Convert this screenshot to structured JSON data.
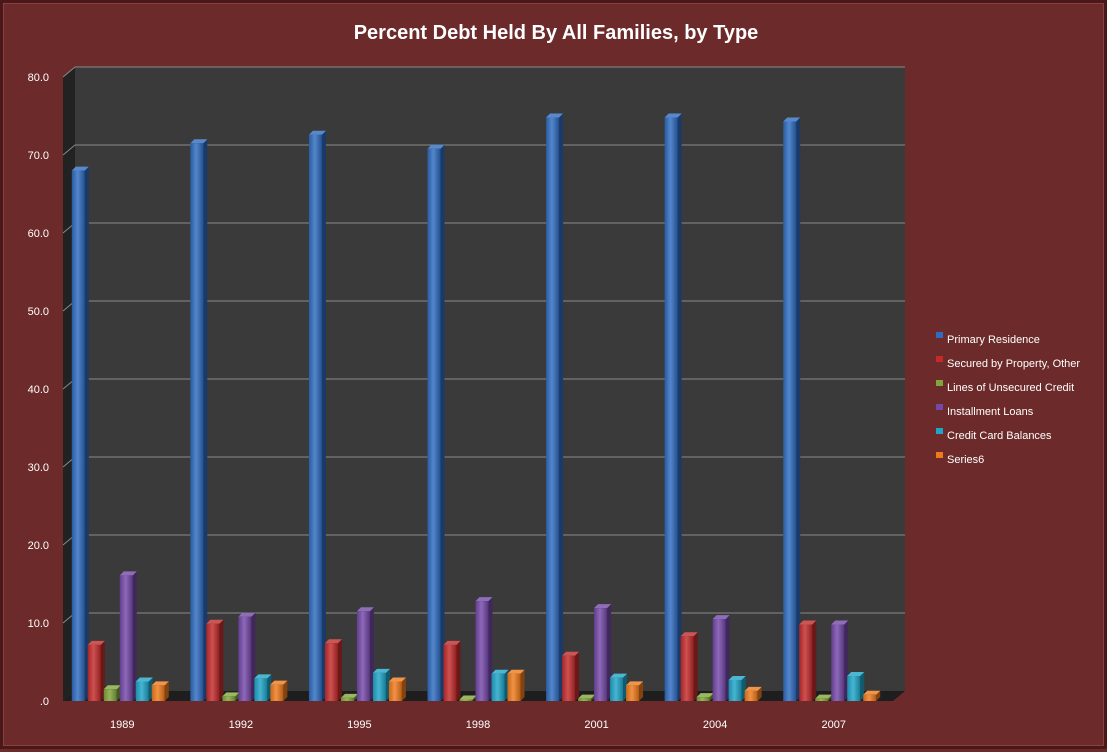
{
  "chart_data": {
    "type": "bar",
    "title": "Percent Debt Held By All Families, by Type",
    "xlabel": "",
    "ylabel": "",
    "categories": [
      "1989",
      "1992",
      "1995",
      "1998",
      "2001",
      "2004",
      "2007"
    ],
    "y_ticks": [
      ".0",
      "10.0",
      "20.0",
      "30.0",
      "40.0",
      "50.0",
      "60.0",
      "70.0",
      "80.0"
    ],
    "ylim": [
      0,
      80
    ],
    "grid": true,
    "legend_position": "right",
    "series": [
      {
        "name": "Primary Residence",
        "color": "#2f6cc0",
        "values": [
          68.0,
          71.5,
          72.6,
          70.8,
          74.8,
          74.8,
          74.3
        ]
      },
      {
        "name": "Secured by Property, Other",
        "color": "#c32b2b",
        "values": [
          7.2,
          9.9,
          7.4,
          7.2,
          5.8,
          8.3,
          9.8
        ]
      },
      {
        "name": "Lines of Unsecured Credit",
        "color": "#7fa63a",
        "values": [
          1.5,
          0.6,
          0.4,
          0.2,
          0.3,
          0.5,
          0.3
        ]
      },
      {
        "name": "Installment Loans",
        "color": "#7448a8",
        "values": [
          16.1,
          10.8,
          11.5,
          12.8,
          11.9,
          10.5,
          9.8
        ]
      },
      {
        "name": "Credit Card Balances",
        "color": "#1fa5c8",
        "values": [
          2.5,
          2.9,
          3.6,
          3.5,
          3.0,
          2.7,
          3.2
        ]
      },
      {
        "name": "Series6",
        "color": "#ee7a1c",
        "values": [
          2.0,
          2.1,
          2.5,
          3.5,
          2.0,
          1.3,
          0.8
        ]
      }
    ]
  }
}
